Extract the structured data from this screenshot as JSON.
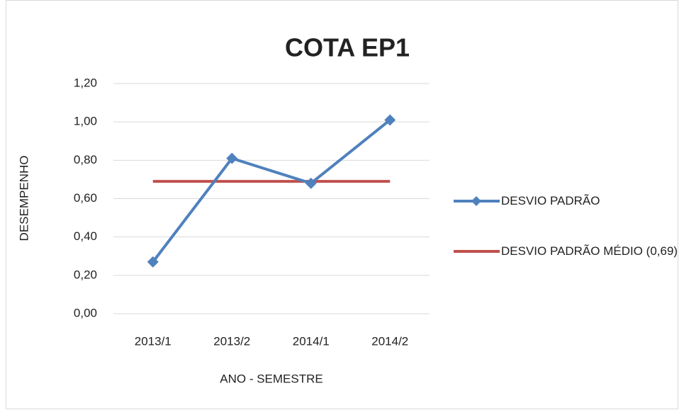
{
  "chart_data": {
    "type": "line",
    "title": "COTA EP1",
    "x_label": "ANO - SEMESTRE",
    "y_label": "DESEMPENHO",
    "categories": [
      "2013/1",
      "2013/2",
      "2014/1",
      "2014/2"
    ],
    "series": [
      {
        "name": "DESVIO PADRÃO",
        "color": "#4f81bd",
        "marker": "diamond",
        "values": [
          0.27,
          0.81,
          0.68,
          1.01
        ]
      },
      {
        "name": "DESVIO PADRÃO MÉDIO (0,69)",
        "color": "#c0504d",
        "values": [
          0.69,
          0.69,
          0.69,
          0.69
        ]
      }
    ],
    "ylim": [
      0,
      1.2
    ],
    "yticks": [
      {
        "value": 0,
        "label": "0,00"
      },
      {
        "value": 0.2,
        "label": "0,20"
      },
      {
        "value": 0.4,
        "label": "0,40"
      },
      {
        "value": 0.6,
        "label": "0,60"
      },
      {
        "value": 0.8,
        "label": "0,80"
      },
      {
        "value": 1,
        "label": "1,00"
      },
      {
        "value": 1.2,
        "label": "1,20"
      }
    ],
    "grid": true,
    "legend": "right"
  }
}
